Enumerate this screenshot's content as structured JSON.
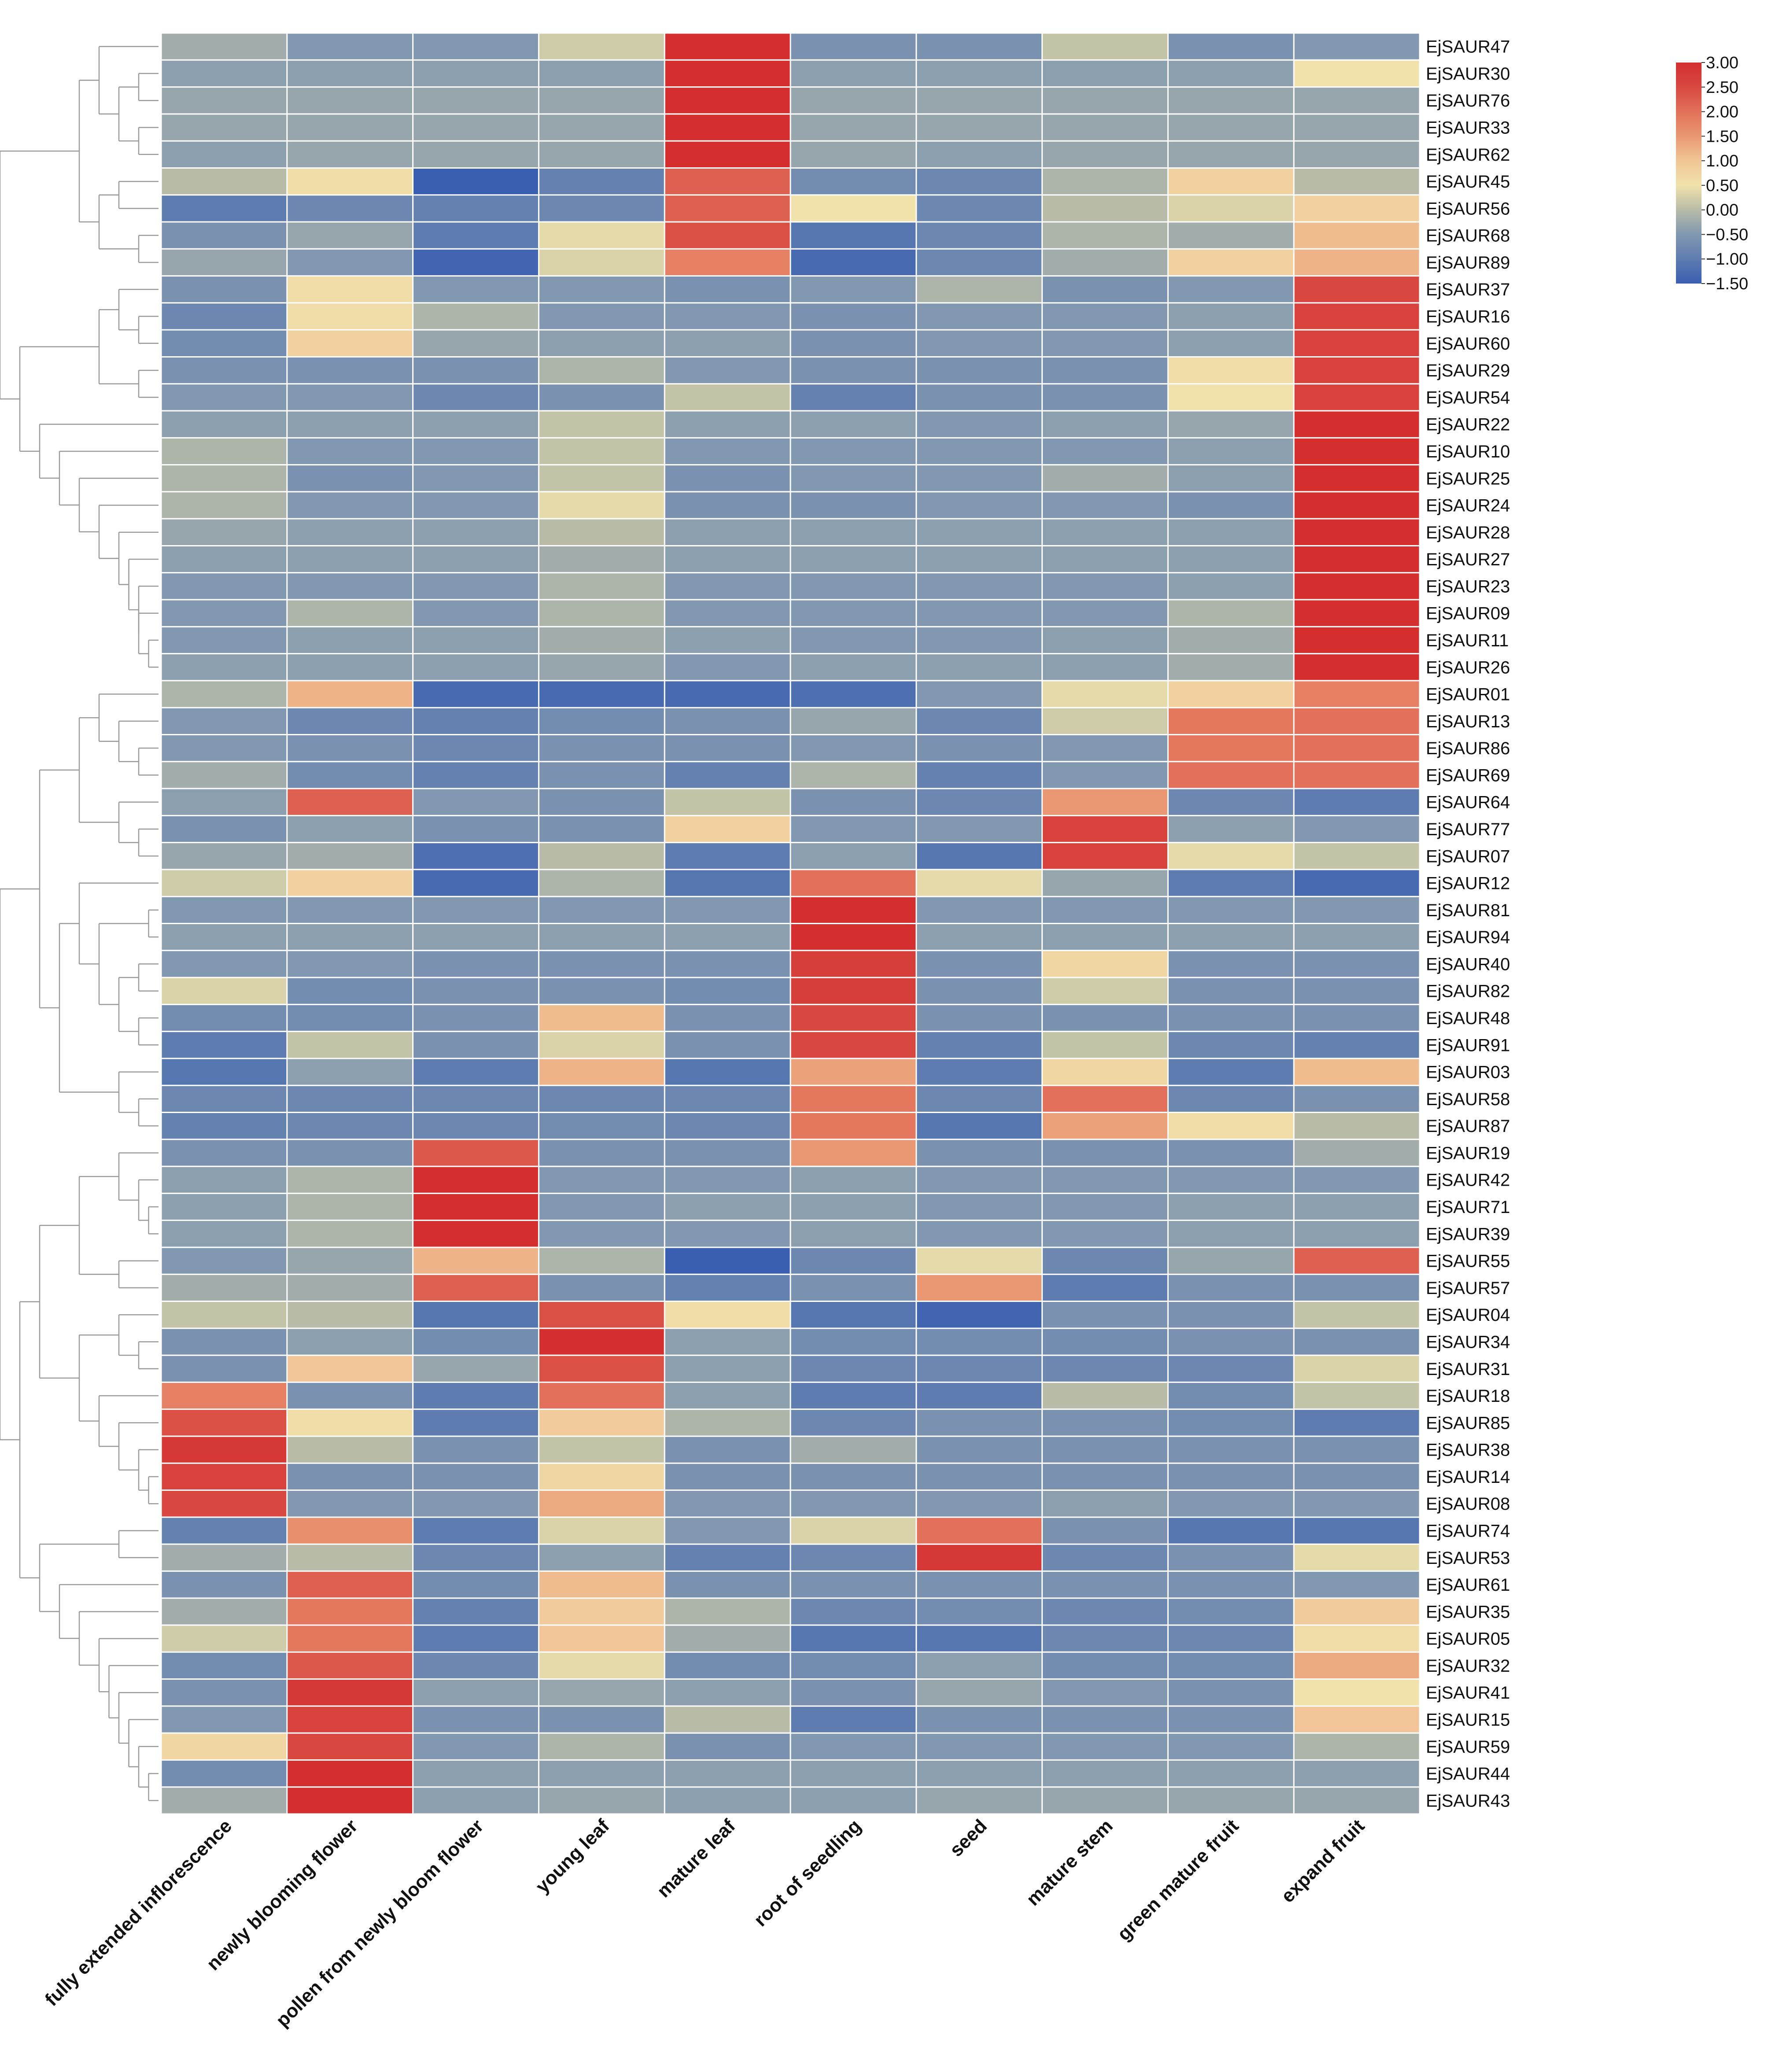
{
  "chart_data": {
    "type": "heatmap",
    "title": "",
    "columns": [
      "fully extended inflorescence",
      "newly blooming flower",
      "pollen from newly bloom flower",
      "young leaf",
      "mature leaf",
      "root of seedling",
      "seed",
      "mature stem",
      "green mature fruit",
      "expand fruit"
    ],
    "rows": [
      "EjSAUR47",
      "EjSAUR30",
      "EjSAUR76",
      "EjSAUR33",
      "EjSAUR62",
      "EjSAUR45",
      "EjSAUR56",
      "EjSAUR68",
      "EjSAUR89",
      "EjSAUR37",
      "EjSAUR16",
      "EjSAUR60",
      "EjSAUR29",
      "EjSAUR54",
      "EjSAUR22",
      "EjSAUR10",
      "EjSAUR25",
      "EjSAUR24",
      "EjSAUR28",
      "EjSAUR27",
      "EjSAUR23",
      "EjSAUR09",
      "EjSAUR11",
      "EjSAUR26",
      "EjSAUR01",
      "EjSAUR13",
      "EjSAUR86",
      "EjSAUR69",
      "EjSAUR64",
      "EjSAUR77",
      "EjSAUR07",
      "EjSAUR12",
      "EjSAUR81",
      "EjSAUR94",
      "EjSAUR40",
      "EjSAUR82",
      "EjSAUR48",
      "EjSAUR91",
      "EjSAUR03",
      "EjSAUR58",
      "EjSAUR87",
      "EjSAUR19",
      "EjSAUR42",
      "EjSAUR71",
      "EjSAUR39",
      "EjSAUR55",
      "EjSAUR57",
      "EjSAUR04",
      "EjSAUR34",
      "EjSAUR31",
      "EjSAUR18",
      "EjSAUR85",
      "EjSAUR38",
      "EjSAUR14",
      "EjSAUR08",
      "EjSAUR74",
      "EjSAUR53",
      "EjSAUR61",
      "EjSAUR35",
      "EjSAUR05",
      "EjSAUR32",
      "EjSAUR41",
      "EjSAUR15",
      "EjSAUR59",
      "EjSAUR44",
      "EjSAUR43"
    ],
    "values": [
      [
        -0.2,
        -0.5,
        -0.5,
        0.2,
        3.0,
        -0.6,
        -0.6,
        0.1,
        -0.6,
        -0.5
      ],
      [
        -0.4,
        -0.4,
        -0.4,
        -0.4,
        3.0,
        -0.4,
        -0.4,
        -0.4,
        -0.4,
        0.5
      ],
      [
        -0.3,
        -0.3,
        -0.3,
        -0.3,
        3.0,
        -0.3,
        -0.3,
        -0.3,
        -0.3,
        -0.3
      ],
      [
        -0.3,
        -0.3,
        -0.3,
        -0.3,
        3.0,
        -0.3,
        -0.3,
        -0.3,
        -0.3,
        -0.3
      ],
      [
        -0.4,
        -0.3,
        -0.3,
        -0.3,
        3.0,
        -0.3,
        -0.4,
        -0.3,
        -0.3,
        -0.3
      ],
      [
        0.0,
        0.6,
        -1.5,
        -0.9,
        2.2,
        -0.7,
        -0.8,
        -0.1,
        0.8,
        0.0
      ],
      [
        -1.0,
        -0.8,
        -0.9,
        -0.8,
        2.2,
        0.5,
        -0.8,
        0.0,
        0.3,
        0.8
      ],
      [
        -0.6,
        -0.3,
        -1.0,
        0.4,
        2.4,
        -1.1,
        -0.8,
        -0.1,
        -0.2,
        1.1
      ],
      [
        -0.3,
        -0.5,
        -1.4,
        0.3,
        1.8,
        -1.3,
        -0.8,
        -0.2,
        0.8,
        1.2
      ],
      [
        -0.6,
        0.6,
        -0.5,
        -0.5,
        -0.6,
        -0.5,
        -0.1,
        -0.6,
        -0.5,
        2.5
      ],
      [
        -0.8,
        0.6,
        -0.1,
        -0.5,
        -0.5,
        -0.6,
        -0.5,
        -0.5,
        -0.4,
        2.6
      ],
      [
        -0.7,
        0.8,
        -0.3,
        -0.4,
        -0.4,
        -0.6,
        -0.5,
        -0.5,
        -0.4,
        2.6
      ],
      [
        -0.6,
        -0.6,
        -0.6,
        -0.1,
        -0.5,
        -0.6,
        -0.6,
        -0.6,
        0.6,
        2.6
      ],
      [
        -0.5,
        -0.5,
        -0.8,
        -0.6,
        0.1,
        -0.9,
        -0.6,
        -0.6,
        0.5,
        2.6
      ],
      [
        -0.4,
        -0.4,
        -0.4,
        0.1,
        -0.4,
        -0.4,
        -0.5,
        -0.4,
        -0.3,
        3.0
      ],
      [
        -0.1,
        -0.5,
        -0.5,
        0.1,
        -0.5,
        -0.5,
        -0.5,
        -0.5,
        -0.4,
        3.0
      ],
      [
        -0.1,
        -0.6,
        -0.5,
        0.1,
        -0.6,
        -0.5,
        -0.5,
        -0.2,
        -0.4,
        3.0
      ],
      [
        -0.1,
        -0.5,
        -0.5,
        0.4,
        -0.6,
        -0.6,
        -0.5,
        -0.5,
        -0.6,
        3.0
      ],
      [
        -0.3,
        -0.4,
        -0.4,
        0.0,
        -0.4,
        -0.4,
        -0.4,
        -0.4,
        -0.4,
        3.0
      ],
      [
        -0.4,
        -0.4,
        -0.4,
        -0.2,
        -0.4,
        -0.4,
        -0.4,
        -0.4,
        -0.4,
        3.0
      ],
      [
        -0.5,
        -0.5,
        -0.5,
        -0.1,
        -0.5,
        -0.5,
        -0.5,
        -0.5,
        -0.4,
        3.0
      ],
      [
        -0.5,
        -0.1,
        -0.5,
        -0.1,
        -0.5,
        -0.5,
        -0.5,
        -0.5,
        -0.1,
        3.0
      ],
      [
        -0.5,
        -0.4,
        -0.4,
        -0.2,
        -0.4,
        -0.5,
        -0.5,
        -0.4,
        -0.2,
        3.0
      ],
      [
        -0.4,
        -0.4,
        -0.4,
        -0.3,
        -0.5,
        -0.4,
        -0.4,
        -0.4,
        -0.2,
        3.0
      ],
      [
        -0.1,
        1.2,
        -1.3,
        -1.3,
        -1.3,
        -1.2,
        -0.5,
        0.4,
        0.8,
        1.8
      ],
      [
        -0.5,
        -0.8,
        -0.9,
        -0.7,
        -0.6,
        -0.3,
        -0.8,
        0.2,
        1.9,
        2.0
      ],
      [
        -0.5,
        -0.6,
        -0.8,
        -0.6,
        -0.6,
        -0.5,
        -0.6,
        -0.5,
        1.9,
        2.0
      ],
      [
        -0.2,
        -0.7,
        -0.9,
        -0.6,
        -0.9,
        -0.1,
        -0.9,
        -0.5,
        2.0,
        2.0
      ],
      [
        -0.4,
        2.2,
        -0.5,
        -0.6,
        0.1,
        -0.6,
        -0.8,
        1.5,
        -0.8,
        -1.0
      ],
      [
        -0.6,
        -0.4,
        -0.6,
        -0.6,
        0.8,
        -0.5,
        -0.5,
        2.6,
        -0.4,
        -0.5
      ],
      [
        -0.3,
        -0.2,
        -1.2,
        0.0,
        -1.0,
        -0.4,
        -1.1,
        2.6,
        0.4,
        0.1
      ],
      [
        0.2,
        0.8,
        -1.3,
        -0.1,
        -1.1,
        2.0,
        0.4,
        -0.3,
        -1.0,
        -1.3
      ],
      [
        -0.5,
        -0.5,
        -0.5,
        -0.5,
        -0.5,
        3.0,
        -0.5,
        -0.5,
        -0.5,
        -0.5
      ],
      [
        -0.4,
        -0.4,
        -0.4,
        -0.4,
        -0.4,
        3.0,
        -0.4,
        -0.4,
        -0.4,
        -0.4
      ],
      [
        -0.5,
        -0.5,
        -0.6,
        -0.6,
        -0.6,
        2.7,
        -0.6,
        0.7,
        -0.6,
        -0.6
      ],
      [
        0.3,
        -0.7,
        -0.6,
        -0.6,
        -0.7,
        2.7,
        -0.6,
        0.2,
        -0.6,
        -0.6
      ],
      [
        -0.7,
        -0.7,
        -0.6,
        1.1,
        -0.6,
        2.5,
        -0.6,
        -0.6,
        -0.6,
        -0.6
      ],
      [
        -1.0,
        0.1,
        -0.6,
        0.3,
        -0.6,
        2.5,
        -0.9,
        0.1,
        -0.8,
        -0.9
      ],
      [
        -1.1,
        -0.4,
        -1.0,
        1.2,
        -1.1,
        1.4,
        -1.0,
        0.7,
        -1.0,
        1.1
      ],
      [
        -0.8,
        -0.8,
        -0.8,
        -0.8,
        -0.8,
        1.9,
        -0.8,
        2.0,
        -0.8,
        -0.6
      ],
      [
        -0.9,
        -0.8,
        -0.8,
        -0.7,
        -0.8,
        1.9,
        -1.1,
        1.4,
        0.6,
        0.0
      ],
      [
        -0.6,
        -0.6,
        2.3,
        -0.6,
        -0.6,
        1.5,
        -0.6,
        -0.6,
        -0.6,
        -0.2
      ],
      [
        -0.4,
        -0.1,
        3.0,
        -0.5,
        -0.5,
        -0.4,
        -0.5,
        -0.5,
        -0.5,
        -0.5
      ],
      [
        -0.4,
        -0.1,
        3.0,
        -0.5,
        -0.4,
        -0.4,
        -0.5,
        -0.5,
        -0.4,
        -0.4
      ],
      [
        -0.4,
        -0.1,
        3.0,
        -0.5,
        -0.5,
        -0.4,
        -0.5,
        -0.5,
        -0.4,
        -0.4
      ],
      [
        -0.5,
        -0.3,
        1.2,
        -0.1,
        -1.5,
        -0.8,
        0.4,
        -0.8,
        -0.3,
        2.2
      ],
      [
        -0.2,
        -0.2,
        2.2,
        -0.6,
        -0.9,
        -0.6,
        1.5,
        -1.0,
        -0.6,
        -0.6
      ],
      [
        0.1,
        0.0,
        -1.1,
        2.4,
        0.6,
        -1.1,
        -1.4,
        -0.6,
        -0.6,
        0.1
      ],
      [
        -0.6,
        -0.4,
        -0.7,
        3.0,
        -0.4,
        -0.7,
        -0.7,
        -0.7,
        -0.6,
        -0.6
      ],
      [
        -0.6,
        1.0,
        -0.3,
        2.4,
        -0.4,
        -0.8,
        -0.8,
        -0.8,
        -0.8,
        0.3
      ],
      [
        1.8,
        -0.6,
        -1.0,
        2.0,
        -0.4,
        -1.0,
        -1.0,
        0.0,
        -0.7,
        0.1
      ],
      [
        2.4,
        0.6,
        -1.0,
        0.9,
        -0.1,
        -0.8,
        -0.6,
        -0.6,
        -0.7,
        -1.0
      ],
      [
        2.8,
        0.0,
        -0.6,
        0.1,
        -0.6,
        -0.2,
        -0.6,
        -0.6,
        -0.6,
        -0.6
      ],
      [
        2.6,
        -0.6,
        -0.6,
        0.7,
        -0.6,
        -0.6,
        -0.6,
        -0.6,
        -0.6,
        -0.6
      ],
      [
        2.5,
        -0.5,
        -0.5,
        1.3,
        -0.5,
        -0.5,
        -0.5,
        -0.4,
        -0.5,
        -0.5
      ],
      [
        -0.9,
        1.6,
        -1.0,
        0.3,
        -0.5,
        0.3,
        2.0,
        -0.6,
        -1.1,
        -1.1
      ],
      [
        -0.2,
        0.0,
        -0.8,
        -0.4,
        -0.9,
        -0.8,
        2.8,
        -0.8,
        -0.6,
        0.4
      ],
      [
        -0.6,
        2.2,
        -0.7,
        1.1,
        -0.6,
        -0.6,
        -0.6,
        -0.6,
        -0.6,
        -0.5
      ],
      [
        -0.2,
        1.9,
        -0.9,
        0.9,
        -0.1,
        -0.8,
        -0.7,
        -0.8,
        -0.7,
        0.9
      ],
      [
        0.2,
        1.9,
        -1.0,
        1.0,
        -0.2,
        -1.1,
        -1.1,
        -0.8,
        -0.8,
        0.6
      ],
      [
        -0.7,
        2.3,
        -0.8,
        0.4,
        -0.7,
        -0.7,
        -0.4,
        -0.7,
        -0.7,
        1.3
      ],
      [
        -0.6,
        2.8,
        -0.4,
        -0.3,
        -0.4,
        -0.6,
        -0.3,
        -0.5,
        -0.6,
        0.5
      ],
      [
        -0.5,
        2.6,
        -0.6,
        -0.6,
        0.0,
        -1.0,
        -0.6,
        -0.6,
        -0.6,
        1.0
      ],
      [
        0.7,
        2.5,
        -0.5,
        -0.1,
        -0.6,
        -0.5,
        -0.5,
        -0.5,
        -0.5,
        -0.1
      ],
      [
        -0.7,
        3.0,
        -0.4,
        -0.4,
        -0.4,
        -0.4,
        -0.4,
        -0.4,
        -0.4,
        -0.4
      ],
      [
        -0.2,
        3.0,
        -0.4,
        -0.3,
        -0.4,
        -0.4,
        -0.3,
        -0.3,
        -0.3,
        -0.3
      ]
    ],
    "colorbar": {
      "range": [
        -1.5,
        3.0
      ],
      "ticks": [
        3.0,
        2.5,
        2.0,
        1.5,
        1.0,
        0.5,
        0.0,
        -0.5,
        -1.0,
        -1.5
      ],
      "tick_labels": [
        "3.00",
        "2.50",
        "2.00",
        "1.50",
        "1.00",
        "0.50",
        "0.00",
        "−0.50",
        "−1.00",
        "−1.50"
      ],
      "colors": [
        {
          "value": -1.5,
          "color": "#3a5fb0"
        },
        {
          "value": -0.5,
          "color": "#8198b0"
        },
        {
          "value": 0.0,
          "color": "#b8bba8"
        },
        {
          "value": 0.5,
          "color": "#f0e2aa"
        },
        {
          "value": 1.0,
          "color": "#f1c597"
        },
        {
          "value": 1.5,
          "color": "#e99873"
        },
        {
          "value": 2.0,
          "color": "#e2705a"
        },
        {
          "value": 2.5,
          "color": "#d84840"
        },
        {
          "value": 3.0,
          "color": "#d42f2e"
        }
      ]
    },
    "dendrogram": "row clustering tree on left",
    "legend_position": "top-right"
  }
}
